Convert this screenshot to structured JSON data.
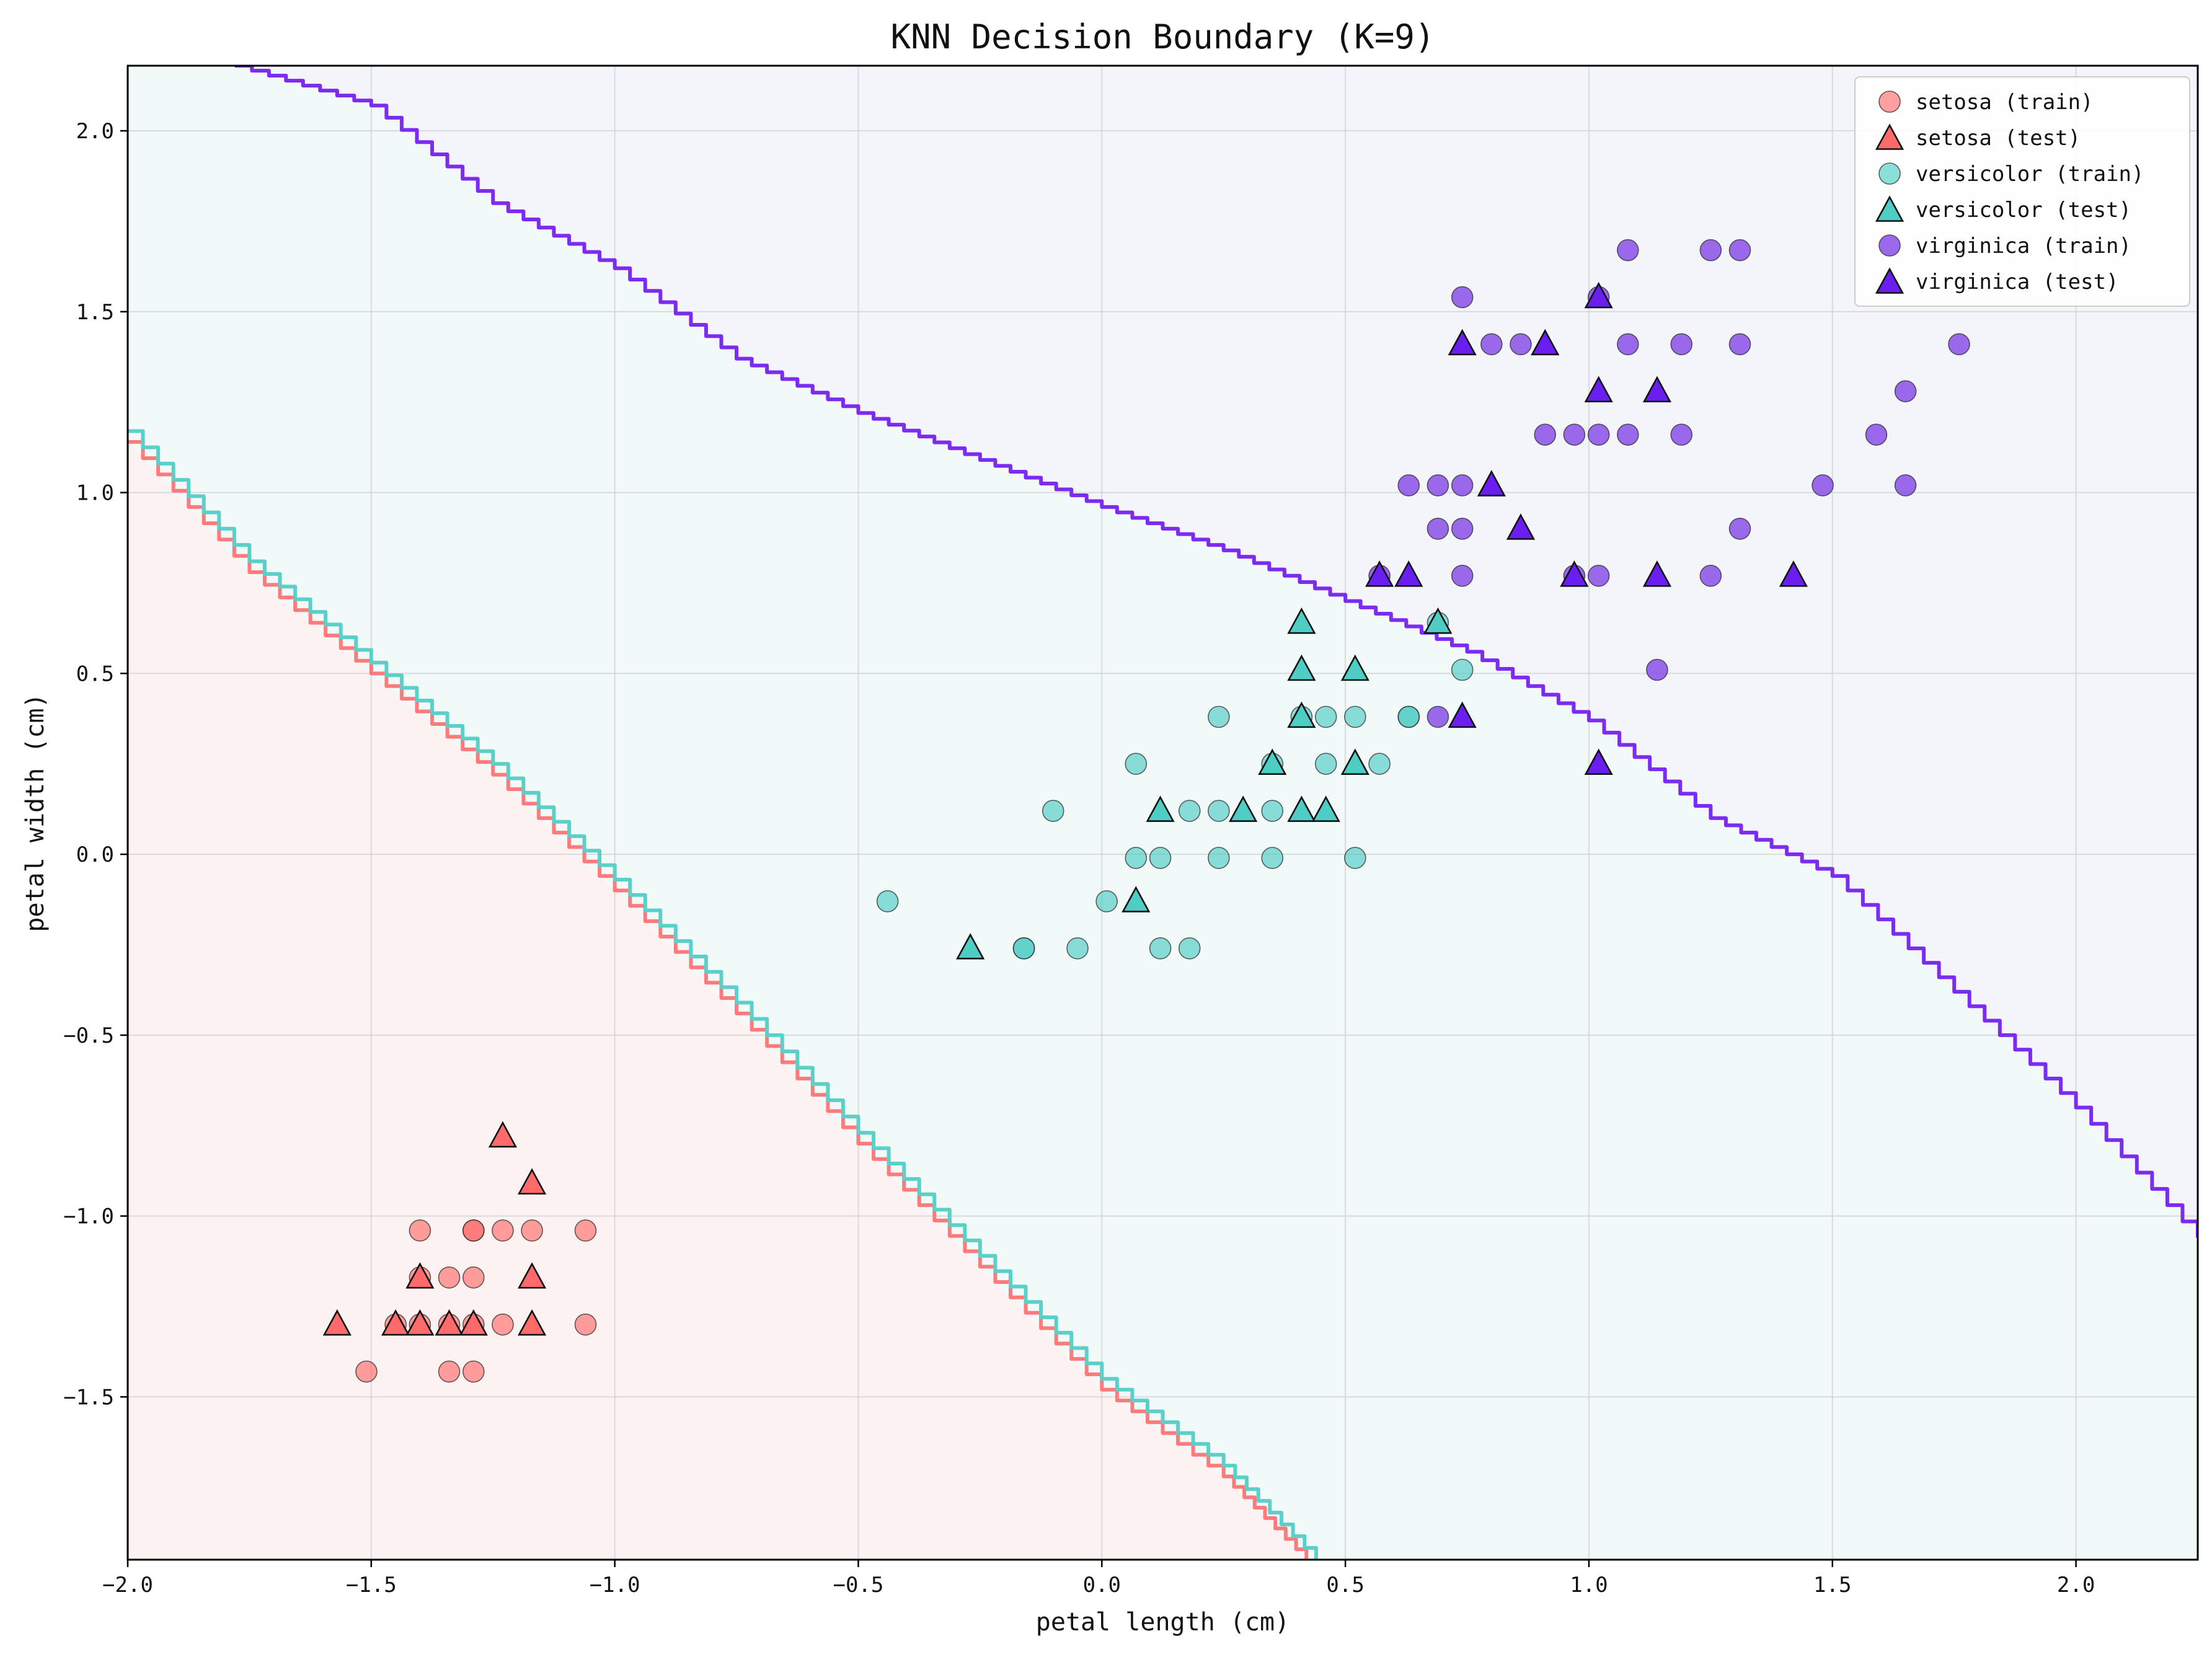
{
  "chart_data": {
    "type": "scatter",
    "title": "KNN Decision Boundary (K=9)",
    "xlabel": "petal length (cm)",
    "ylabel": "petal width (cm)",
    "xlim": [
      -2.0,
      2.25
    ],
    "ylim": [
      -1.95,
      2.18
    ],
    "xticks": [
      -2.0,
      -1.5,
      -1.0,
      -0.5,
      0.0,
      0.5,
      1.0,
      1.5,
      2.0
    ],
    "xtick_labels": [
      "−2.0",
      "−1.5",
      "−1.0",
      "−0.5",
      "0.0",
      "0.5",
      "1.0",
      "1.5",
      "2.0"
    ],
    "yticks": [
      -1.5,
      -1.0,
      -0.5,
      0.0,
      0.5,
      1.0,
      1.5,
      2.0
    ],
    "ytick_labels": [
      "−1.5",
      "−1.0",
      "−0.5",
      "0.0",
      "0.5",
      "1.0",
      "1.5",
      "2.0"
    ],
    "grid": true,
    "legend_position": "top-right",
    "colors": {
      "setosa": "#ff6b6b",
      "versicolor": "#4ecdc4",
      "virginica": "#6a1ff0",
      "virginica_train": "#8a4fe8",
      "region_setosa": "#fdf2f2",
      "region_versicolor": "#f2faf9",
      "region_virginica": "#f3f5fa",
      "boundary_virginica": "#7b2cf0"
    },
    "series": [
      {
        "name": "setosa (train)",
        "class": "setosa",
        "marker": "circle",
        "points": [
          [
            -1.51,
            -1.43
          ],
          [
            -1.4,
            -1.04
          ],
          [
            -1.4,
            -1.17
          ],
          [
            -1.34,
            -1.17
          ],
          [
            -1.34,
            -1.43
          ],
          [
            -1.34,
            -1.3
          ],
          [
            -1.29,
            -1.04
          ],
          [
            -1.29,
            -1.17
          ],
          [
            -1.29,
            -1.43
          ],
          [
            -1.29,
            -1.3
          ],
          [
            -1.23,
            -1.04
          ],
          [
            -1.23,
            -1.3
          ],
          [
            -1.17,
            -1.04
          ],
          [
            -1.06,
            -1.04
          ],
          [
            -1.06,
            -1.3
          ],
          [
            -1.4,
            -1.3
          ],
          [
            -1.45,
            -1.3
          ],
          [
            -1.29,
            -1.04
          ]
        ]
      },
      {
        "name": "setosa (test)",
        "class": "setosa",
        "marker": "triangle",
        "points": [
          [
            -1.57,
            -1.3
          ],
          [
            -1.45,
            -1.3
          ],
          [
            -1.4,
            -1.3
          ],
          [
            -1.4,
            -1.17
          ],
          [
            -1.34,
            -1.3
          ],
          [
            -1.29,
            -1.3
          ],
          [
            -1.23,
            -0.78
          ],
          [
            -1.17,
            -0.91
          ],
          [
            -1.17,
            -1.17
          ],
          [
            -1.17,
            -1.3
          ]
        ]
      },
      {
        "name": "versicolor (train)",
        "class": "versicolor",
        "marker": "circle",
        "points": [
          [
            -0.44,
            -0.13
          ],
          [
            -0.1,
            0.12
          ],
          [
            -0.16,
            -0.26
          ],
          [
            -0.16,
            -0.26
          ],
          [
            -0.05,
            -0.26
          ],
          [
            0.01,
            -0.13
          ],
          [
            0.07,
            0.25
          ],
          [
            0.07,
            -0.01
          ],
          [
            0.12,
            -0.01
          ],
          [
            0.12,
            -0.26
          ],
          [
            0.18,
            0.12
          ],
          [
            0.18,
            -0.26
          ],
          [
            0.24,
            0.38
          ],
          [
            0.24,
            0.12
          ],
          [
            0.24,
            -0.01
          ],
          [
            0.35,
            0.12
          ],
          [
            0.35,
            -0.01
          ],
          [
            0.35,
            0.25
          ],
          [
            0.41,
            0.38
          ],
          [
            0.46,
            0.38
          ],
          [
            0.46,
            0.25
          ],
          [
            0.52,
            0.38
          ],
          [
            0.52,
            -0.01
          ],
          [
            0.57,
            0.25
          ],
          [
            0.63,
            0.38
          ],
          [
            0.63,
            0.38
          ],
          [
            0.74,
            0.51
          ],
          [
            0.69,
            0.64
          ]
        ]
      },
      {
        "name": "versicolor (test)",
        "class": "versicolor",
        "marker": "triangle",
        "points": [
          [
            -0.27,
            -0.26
          ],
          [
            0.07,
            -0.13
          ],
          [
            0.12,
            0.12
          ],
          [
            0.29,
            0.12
          ],
          [
            0.35,
            0.25
          ],
          [
            0.41,
            0.12
          ],
          [
            0.46,
            0.12
          ],
          [
            0.41,
            0.38
          ],
          [
            0.41,
            0.51
          ],
          [
            0.41,
            0.64
          ],
          [
            0.52,
            0.51
          ],
          [
            0.52,
            0.25
          ],
          [
            0.69,
            0.64
          ]
        ]
      },
      {
        "name": "virginica (train)",
        "class": "virginica",
        "marker": "circle",
        "points": [
          [
            0.57,
            0.77
          ],
          [
            0.63,
            1.02
          ],
          [
            0.69,
            1.02
          ],
          [
            0.69,
            0.9
          ],
          [
            0.69,
            0.38
          ],
          [
            0.74,
            1.54
          ],
          [
            0.74,
            1.02
          ],
          [
            0.74,
            0.9
          ],
          [
            0.74,
            0.77
          ],
          [
            0.8,
            1.41
          ],
          [
            0.86,
            1.41
          ],
          [
            0.91,
            1.16
          ],
          [
            0.97,
            1.16
          ],
          [
            0.97,
            0.77
          ],
          [
            1.02,
            1.54
          ],
          [
            1.02,
            1.16
          ],
          [
            1.02,
            0.77
          ],
          [
            1.08,
            1.67
          ],
          [
            1.08,
            1.41
          ],
          [
            1.08,
            1.16
          ],
          [
            1.14,
            0.51
          ],
          [
            1.19,
            1.41
          ],
          [
            1.19,
            1.16
          ],
          [
            1.25,
            1.67
          ],
          [
            1.25,
            0.77
          ],
          [
            1.31,
            1.67
          ],
          [
            1.31,
            1.41
          ],
          [
            1.31,
            0.9
          ],
          [
            1.48,
            1.02
          ],
          [
            1.59,
            1.16
          ],
          [
            1.65,
            1.28
          ],
          [
            1.65,
            1.02
          ],
          [
            1.76,
            1.41
          ]
        ]
      },
      {
        "name": "virginica (test)",
        "class": "virginica",
        "marker": "triangle",
        "points": [
          [
            0.57,
            0.77
          ],
          [
            0.63,
            0.77
          ],
          [
            0.74,
            1.41
          ],
          [
            0.74,
            0.38
          ],
          [
            0.8,
            1.02
          ],
          [
            0.86,
            0.9
          ],
          [
            0.91,
            1.41
          ],
          [
            0.97,
            0.77
          ],
          [
            1.02,
            1.54
          ],
          [
            1.02,
            1.28
          ],
          [
            1.02,
            0.25
          ],
          [
            1.14,
            1.28
          ],
          [
            1.14,
            0.77
          ],
          [
            1.42,
            0.77
          ]
        ]
      }
    ],
    "decision_boundaries": [
      {
        "between": "setosa-versicolor",
        "color": "#ff7b7b",
        "points": [
          [
            -2.0,
            1.14
          ],
          [
            -1.75,
            0.78
          ],
          [
            -1.5,
            0.5
          ],
          [
            -1.25,
            0.22
          ],
          [
            -1.0,
            -0.1
          ],
          [
            -0.75,
            -0.44
          ],
          [
            -0.5,
            -0.8
          ],
          [
            -0.25,
            -1.14
          ],
          [
            0.0,
            -1.48
          ],
          [
            0.25,
            -1.72
          ],
          [
            0.42,
            -1.95
          ]
        ]
      },
      {
        "between": "setosa-versicolor",
        "color": "#5cd0c8",
        "points": [
          [
            -2.0,
            1.17
          ],
          [
            -1.75,
            0.81
          ],
          [
            -1.5,
            0.53
          ],
          [
            -1.25,
            0.25
          ],
          [
            -1.0,
            -0.07
          ],
          [
            -0.75,
            -0.41
          ],
          [
            -0.5,
            -0.77
          ],
          [
            -0.25,
            -1.11
          ],
          [
            0.0,
            -1.45
          ],
          [
            0.25,
            -1.69
          ],
          [
            0.44,
            -1.95
          ]
        ]
      },
      {
        "between": "versicolor-virginica",
        "color": "#7b2cf0",
        "points": [
          [
            -1.78,
            2.18
          ],
          [
            -1.5,
            2.07
          ],
          [
            -1.25,
            1.8
          ],
          [
            -1.0,
            1.62
          ],
          [
            -0.75,
            1.37
          ],
          [
            -0.5,
            1.22
          ],
          [
            -0.25,
            1.09
          ],
          [
            0.0,
            0.96
          ],
          [
            0.25,
            0.84
          ],
          [
            0.5,
            0.7
          ],
          [
            0.75,
            0.56
          ],
          [
            1.0,
            0.37
          ],
          [
            1.25,
            0.1
          ],
          [
            1.5,
            -0.06
          ],
          [
            1.75,
            -0.38
          ],
          [
            2.0,
            -0.7
          ],
          [
            2.25,
            -1.06
          ]
        ]
      }
    ],
    "class_regions": [
      {
        "class": "setosa",
        "polygon": [
          [
            -2.0,
            -1.95
          ],
          [
            -2.0,
            1.14
          ],
          [
            -1.75,
            0.78
          ],
          [
            -1.5,
            0.5
          ],
          [
            -1.25,
            0.22
          ],
          [
            -1.0,
            -0.1
          ],
          [
            -0.75,
            -0.44
          ],
          [
            -0.5,
            -0.8
          ],
          [
            -0.25,
            -1.14
          ],
          [
            0.0,
            -1.48
          ],
          [
            0.25,
            -1.72
          ],
          [
            0.42,
            -1.95
          ]
        ]
      },
      {
        "class": "versicolor",
        "polygon": [
          [
            -2.0,
            1.14
          ],
          [
            -2.0,
            2.18
          ],
          [
            -1.78,
            2.18
          ],
          [
            -1.5,
            2.07
          ],
          [
            -1.25,
            1.8
          ],
          [
            -1.0,
            1.62
          ],
          [
            -0.75,
            1.37
          ],
          [
            -0.5,
            1.22
          ],
          [
            -0.25,
            1.09
          ],
          [
            0.0,
            0.96
          ],
          [
            0.25,
            0.84
          ],
          [
            0.5,
            0.7
          ],
          [
            0.75,
            0.56
          ],
          [
            1.0,
            0.37
          ],
          [
            1.25,
            0.1
          ],
          [
            1.5,
            -0.06
          ],
          [
            1.75,
            -0.38
          ],
          [
            2.0,
            -0.7
          ],
          [
            2.25,
            -1.06
          ],
          [
            2.25,
            -1.95
          ],
          [
            0.42,
            -1.95
          ],
          [
            0.25,
            -1.72
          ],
          [
            0.0,
            -1.48
          ],
          [
            -0.25,
            -1.14
          ],
          [
            -0.5,
            -0.8
          ],
          [
            -0.75,
            -0.44
          ],
          [
            -1.0,
            -0.1
          ],
          [
            -1.25,
            0.22
          ],
          [
            -1.5,
            0.5
          ],
          [
            -1.75,
            0.78
          ]
        ]
      },
      {
        "class": "virginica",
        "polygon": [
          [
            -1.78,
            2.18
          ],
          [
            2.25,
            2.18
          ],
          [
            2.25,
            -1.06
          ],
          [
            2.0,
            -0.7
          ],
          [
            1.75,
            -0.38
          ],
          [
            1.5,
            -0.06
          ],
          [
            1.25,
            0.1
          ],
          [
            1.0,
            0.37
          ],
          [
            0.75,
            0.56
          ],
          [
            0.5,
            0.7
          ],
          [
            0.25,
            0.84
          ],
          [
            0.0,
            0.96
          ],
          [
            -0.25,
            1.09
          ],
          [
            -0.5,
            1.22
          ],
          [
            -0.75,
            1.37
          ],
          [
            -1.0,
            1.62
          ],
          [
            -1.25,
            1.8
          ],
          [
            -1.5,
            2.07
          ]
        ]
      }
    ]
  }
}
